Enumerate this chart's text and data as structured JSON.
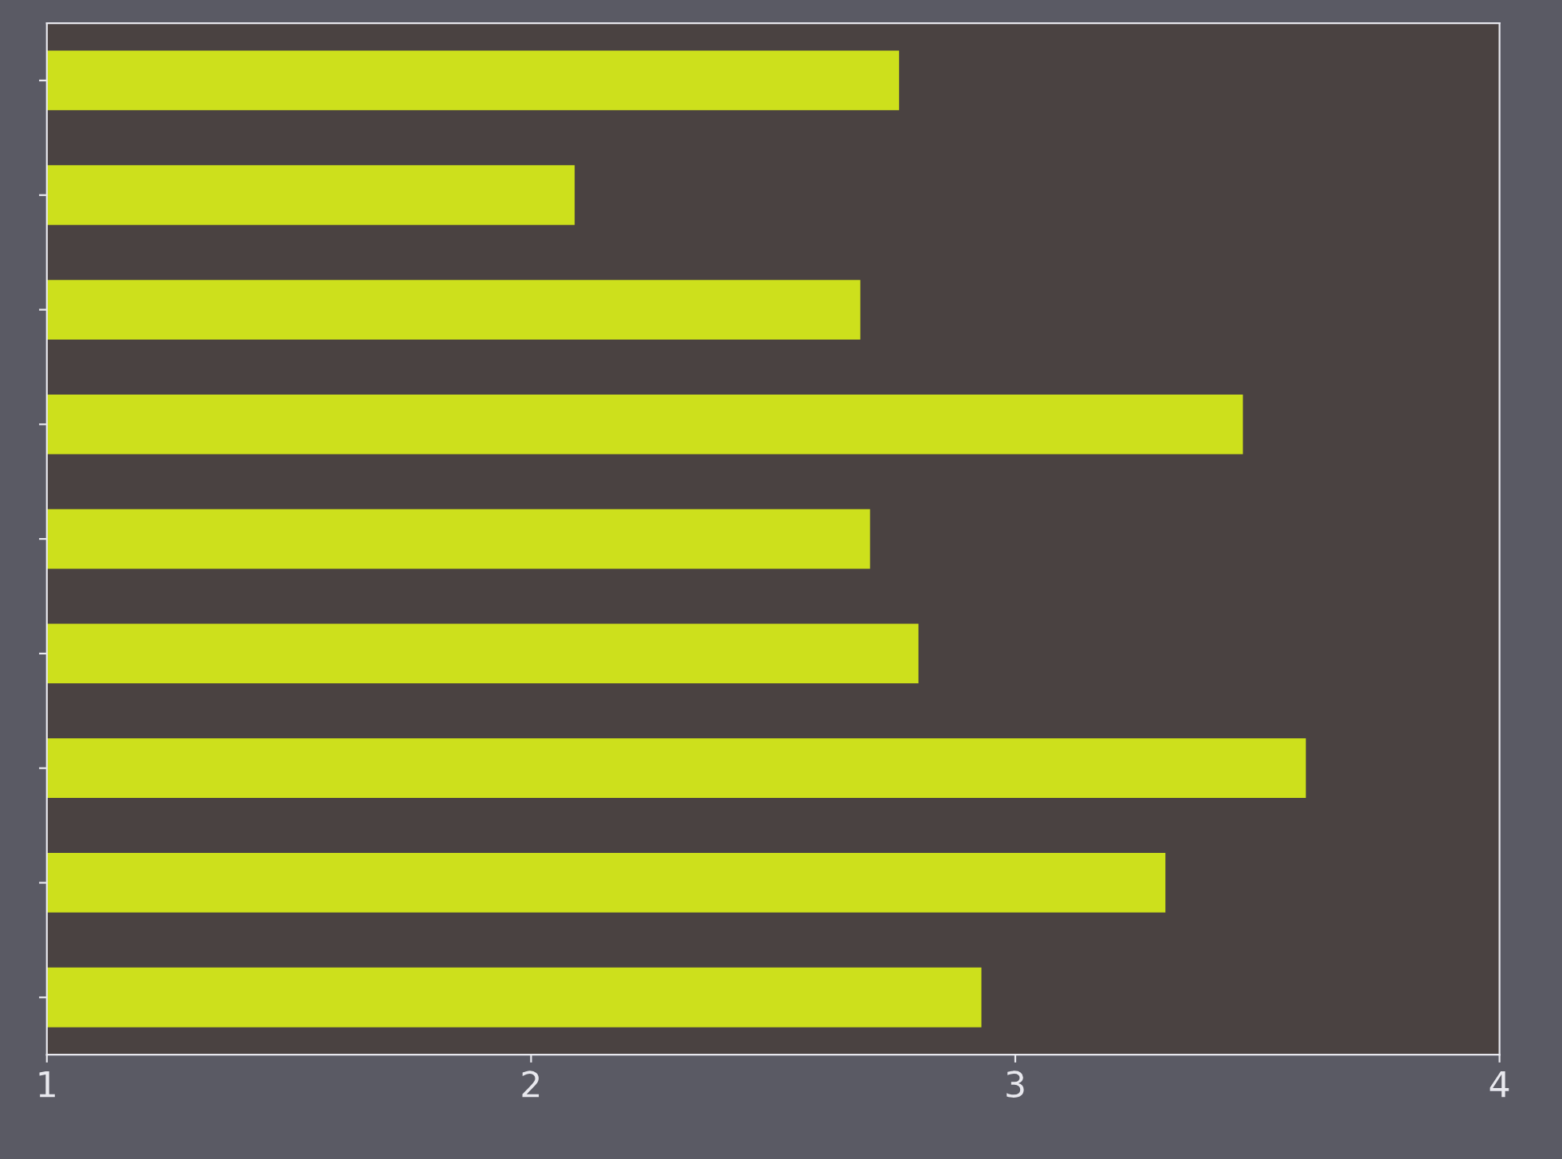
{
  "chart_data": {
    "type": "bar",
    "orientation": "horizontal",
    "categories": [
      null,
      null,
      null,
      null,
      null,
      null,
      null,
      null,
      null
    ],
    "values": [
      2.76,
      2.09,
      2.68,
      3.47,
      2.7,
      2.8,
      3.6,
      3.31,
      2.93
    ],
    "color": "#cde01c",
    "xlim": [
      1,
      4
    ],
    "xticks": [
      1,
      2,
      3,
      4
    ],
    "tick_labels": "x",
    "grid": false
  }
}
